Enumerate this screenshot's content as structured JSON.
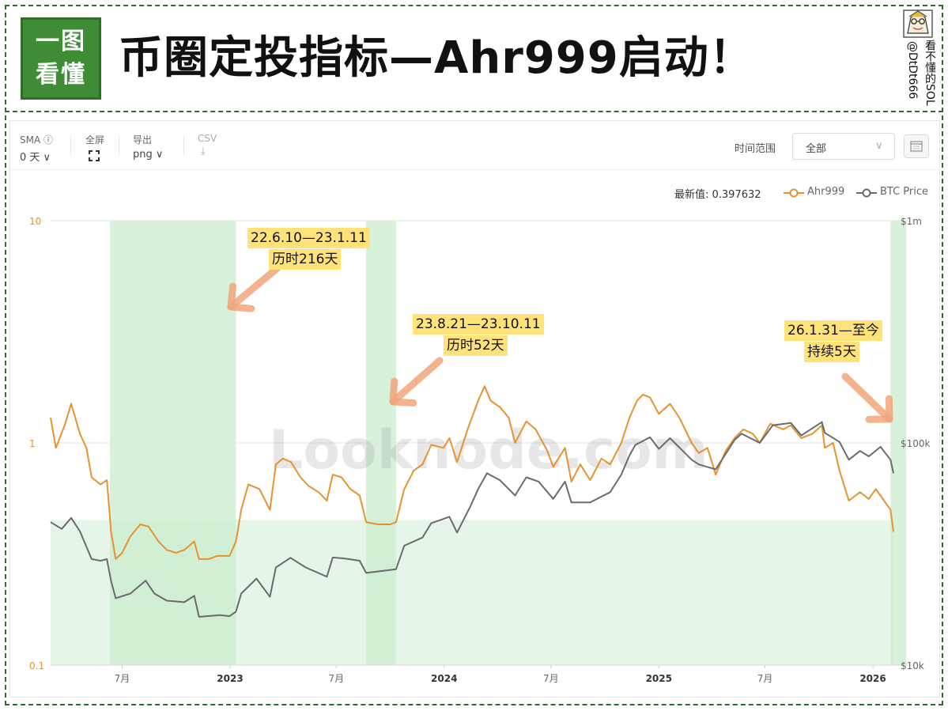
{
  "header": {
    "logo_lines": [
      "一图",
      "看懂"
    ],
    "title": "币圈定投指标—Ahr999启动！",
    "author_cols": [
      "看不懂的SOL",
      "@DtDt666"
    ]
  },
  "toolbar": {
    "sma_label": "SMA ⓘ",
    "sma_value": "0 天 ∨",
    "fullscreen_label": "全屏",
    "export_label": "导出",
    "export_value": "png ∨",
    "csv_label": "CSV",
    "csv_icon": "⤓",
    "range_label": "时间范围",
    "range_value": "全部",
    "range_chevron": "∨"
  },
  "legend": {
    "latest": "最新值: 0.397632",
    "items": [
      "Ahr999",
      "BTC Price"
    ]
  },
  "watermark": "Looknode.com",
  "colors": {
    "ahr999": "#e8922f",
    "btc": "#6b6b6b",
    "band": "#c9eccf",
    "zone": "#e5f6e8",
    "annot": "#ffe27a",
    "arrow": "#f1a67b",
    "frame": "#2f6b2c"
  },
  "annotations": [
    {
      "lines": [
        "22.6.10—23.1.11",
        "历时216天"
      ]
    },
    {
      "lines": [
        "23.8.21—23.10.11",
        "历时52天"
      ]
    },
    {
      "lines": [
        "26.1.31—至今",
        "持续5天"
      ]
    }
  ],
  "chart_data": {
    "type": "line",
    "x_start": "2022-03-01",
    "x_end": "2026-02-05",
    "x_ticks": [
      {
        "date": "2022-07-01",
        "label": "7月",
        "bold": false
      },
      {
        "date": "2023-01-01",
        "label": "2023",
        "bold": true
      },
      {
        "date": "2023-07-01",
        "label": "7月",
        "bold": false
      },
      {
        "date": "2024-01-01",
        "label": "2024",
        "bold": true
      },
      {
        "date": "2024-07-01",
        "label": "7月",
        "bold": false
      },
      {
        "date": "2025-01-01",
        "label": "2025",
        "bold": true
      },
      {
        "date": "2025-07-01",
        "label": "7月",
        "bold": false
      },
      {
        "date": "2026-01-01",
        "label": "2026",
        "bold": true
      }
    ],
    "left_axis": {
      "scale": "log",
      "range": [
        0.1,
        10
      ],
      "ticks": [
        "10",
        "1",
        "0.1"
      ]
    },
    "right_axis": {
      "scale": "log",
      "range": [
        10000,
        1000000
      ],
      "ticks": [
        "$1m",
        "$100k",
        "$10k"
      ]
    },
    "shaded_periods": [
      {
        "start": "2022-06-10",
        "end": "2023-01-11"
      },
      {
        "start": "2023-08-21",
        "end": "2023-10-11"
      },
      {
        "start": "2026-01-31",
        "end": "2026-02-05"
      }
    ],
    "threshold_zone": {
      "from": 0.1,
      "to": 0.45
    },
    "series": [
      {
        "name": "Ahr999",
        "axis": "left",
        "points": [
          [
            "2022-03-01",
            1.3
          ],
          [
            "2022-03-10",
            0.95
          ],
          [
            "2022-03-25",
            1.2
          ],
          [
            "2022-04-05",
            1.5
          ],
          [
            "2022-04-20",
            1.1
          ],
          [
            "2022-05-01",
            0.95
          ],
          [
            "2022-05-10",
            0.7
          ],
          [
            "2022-05-25",
            0.65
          ],
          [
            "2022-06-05",
            0.68
          ],
          [
            "2022-06-12",
            0.4
          ],
          [
            "2022-06-20",
            0.3
          ],
          [
            "2022-07-01",
            0.32
          ],
          [
            "2022-07-15",
            0.38
          ],
          [
            "2022-08-01",
            0.43
          ],
          [
            "2022-08-15",
            0.42
          ],
          [
            "2022-09-01",
            0.36
          ],
          [
            "2022-09-15",
            0.33
          ],
          [
            "2022-10-01",
            0.32
          ],
          [
            "2022-10-15",
            0.33
          ],
          [
            "2022-11-01",
            0.36
          ],
          [
            "2022-11-09",
            0.3
          ],
          [
            "2022-11-25",
            0.3
          ],
          [
            "2022-12-10",
            0.31
          ],
          [
            "2022-12-31",
            0.31
          ],
          [
            "2023-01-11",
            0.36
          ],
          [
            "2023-01-20",
            0.5
          ],
          [
            "2023-02-01",
            0.65
          ],
          [
            "2023-02-20",
            0.62
          ],
          [
            "2023-03-10",
            0.5
          ],
          [
            "2023-03-20",
            0.8
          ],
          [
            "2023-04-01",
            0.85
          ],
          [
            "2023-04-15",
            0.82
          ],
          [
            "2023-05-01",
            0.7
          ],
          [
            "2023-05-15",
            0.64
          ],
          [
            "2023-06-01",
            0.6
          ],
          [
            "2023-06-15",
            0.55
          ],
          [
            "2023-06-25",
            0.72
          ],
          [
            "2023-07-10",
            0.7
          ],
          [
            "2023-07-25",
            0.62
          ],
          [
            "2023-08-10",
            0.58
          ],
          [
            "2023-08-21",
            0.44
          ],
          [
            "2023-09-10",
            0.43
          ],
          [
            "2023-10-01",
            0.43
          ],
          [
            "2023-10-11",
            0.44
          ],
          [
            "2023-10-25",
            0.62
          ],
          [
            "2023-11-10",
            0.75
          ],
          [
            "2023-11-25",
            0.8
          ],
          [
            "2023-12-10",
            0.98
          ],
          [
            "2023-12-31",
            0.95
          ],
          [
            "2024-01-10",
            1.05
          ],
          [
            "2024-01-23",
            0.82
          ],
          [
            "2024-02-10",
            1.15
          ],
          [
            "2024-02-28",
            1.55
          ],
          [
            "2024-03-10",
            1.8
          ],
          [
            "2024-03-20",
            1.55
          ],
          [
            "2024-04-05",
            1.45
          ],
          [
            "2024-04-20",
            1.3
          ],
          [
            "2024-05-01",
            1.0
          ],
          [
            "2024-05-20",
            1.25
          ],
          [
            "2024-06-05",
            1.15
          ],
          [
            "2024-06-25",
            0.92
          ],
          [
            "2024-07-05",
            0.78
          ],
          [
            "2024-07-25",
            0.95
          ],
          [
            "2024-08-05",
            0.67
          ],
          [
            "2024-08-20",
            0.8
          ],
          [
            "2024-09-06",
            0.68
          ],
          [
            "2024-09-25",
            0.85
          ],
          [
            "2024-10-10",
            0.8
          ],
          [
            "2024-10-29",
            1.0
          ],
          [
            "2024-11-12",
            1.3
          ],
          [
            "2024-11-25",
            1.55
          ],
          [
            "2024-12-05",
            1.65
          ],
          [
            "2024-12-17",
            1.6
          ],
          [
            "2025-01-01",
            1.35
          ],
          [
            "2025-01-20",
            1.5
          ],
          [
            "2025-02-05",
            1.3
          ],
          [
            "2025-02-26",
            1.0
          ],
          [
            "2025-03-10",
            0.9
          ],
          [
            "2025-03-25",
            0.95
          ],
          [
            "2025-04-08",
            0.72
          ],
          [
            "2025-04-25",
            0.92
          ],
          [
            "2025-05-10",
            1.05
          ],
          [
            "2025-05-25",
            1.15
          ],
          [
            "2025-06-10",
            1.1
          ],
          [
            "2025-06-22",
            1.0
          ],
          [
            "2025-07-10",
            1.22
          ],
          [
            "2025-08-01",
            1.15
          ],
          [
            "2025-08-14",
            1.2
          ],
          [
            "2025-09-01",
            1.05
          ],
          [
            "2025-09-20",
            1.1
          ],
          [
            "2025-10-06",
            1.2
          ],
          [
            "2025-10-11",
            0.95
          ],
          [
            "2025-10-25",
            1.0
          ],
          [
            "2025-11-05",
            0.75
          ],
          [
            "2025-11-21",
            0.55
          ],
          [
            "2025-12-10",
            0.6
          ],
          [
            "2025-12-25",
            0.56
          ],
          [
            "2026-01-06",
            0.62
          ],
          [
            "2026-01-20",
            0.55
          ],
          [
            "2026-01-31",
            0.5
          ],
          [
            "2026-02-05",
            0.398
          ]
        ]
      },
      {
        "name": "BTC Price",
        "axis": "right",
        "points": [
          [
            "2022-03-01",
            44000
          ],
          [
            "2022-03-20",
            41000
          ],
          [
            "2022-04-05",
            46000
          ],
          [
            "2022-04-20",
            40000
          ],
          [
            "2022-05-10",
            30000
          ],
          [
            "2022-05-25",
            29500
          ],
          [
            "2022-06-05",
            30000
          ],
          [
            "2022-06-12",
            24000
          ],
          [
            "2022-06-20",
            20000
          ],
          [
            "2022-07-15",
            21000
          ],
          [
            "2022-08-10",
            24000
          ],
          [
            "2022-08-25",
            21000
          ],
          [
            "2022-09-15",
            19500
          ],
          [
            "2022-10-15",
            19200
          ],
          [
            "2022-11-01",
            20500
          ],
          [
            "2022-11-09",
            16500
          ],
          [
            "2022-12-15",
            16800
          ],
          [
            "2022-12-31",
            16600
          ],
          [
            "2023-01-11",
            17400
          ],
          [
            "2023-01-20",
            21000
          ],
          [
            "2023-02-15",
            24500
          ],
          [
            "2023-03-10",
            20300
          ],
          [
            "2023-03-20",
            27500
          ],
          [
            "2023-04-14",
            30400
          ],
          [
            "2023-05-10",
            27500
          ],
          [
            "2023-06-15",
            25000
          ],
          [
            "2023-06-25",
            30500
          ],
          [
            "2023-07-15",
            30200
          ],
          [
            "2023-08-10",
            29500
          ],
          [
            "2023-08-21",
            26000
          ],
          [
            "2023-09-15",
            26500
          ],
          [
            "2023-10-11",
            27000
          ],
          [
            "2023-10-25",
            34500
          ],
          [
            "2023-11-25",
            37500
          ],
          [
            "2023-12-10",
            43500
          ],
          [
            "2024-01-10",
            46500
          ],
          [
            "2024-01-23",
            39500
          ],
          [
            "2024-02-15",
            52000
          ],
          [
            "2024-02-28",
            62000
          ],
          [
            "2024-03-14",
            73000
          ],
          [
            "2024-04-05",
            68000
          ],
          [
            "2024-05-01",
            58000
          ],
          [
            "2024-05-20",
            70000
          ],
          [
            "2024-06-10",
            67000
          ],
          [
            "2024-07-05",
            56000
          ],
          [
            "2024-07-25",
            67000
          ],
          [
            "2024-08-05",
            54000
          ],
          [
            "2024-09-06",
            54000
          ],
          [
            "2024-10-10",
            60000
          ],
          [
            "2024-10-29",
            72000
          ],
          [
            "2024-11-12",
            88000
          ],
          [
            "2024-11-22",
            98000
          ],
          [
            "2024-12-17",
            106000
          ],
          [
            "2025-01-01",
            94000
          ],
          [
            "2025-01-20",
            105000
          ],
          [
            "2025-02-26",
            84000
          ],
          [
            "2025-03-10",
            80000
          ],
          [
            "2025-04-08",
            76000
          ],
          [
            "2025-05-10",
            103000
          ],
          [
            "2025-05-22",
            110000
          ],
          [
            "2025-06-22",
            100000
          ],
          [
            "2025-07-14",
            120000
          ],
          [
            "2025-08-14",
            123000
          ],
          [
            "2025-09-01",
            108000
          ],
          [
            "2025-10-06",
            124000
          ],
          [
            "2025-10-11",
            111000
          ],
          [
            "2025-11-05",
            101000
          ],
          [
            "2025-11-21",
            84000
          ],
          [
            "2025-12-10",
            92000
          ],
          [
            "2025-12-25",
            87000
          ],
          [
            "2026-01-14",
            96000
          ],
          [
            "2026-01-31",
            84000
          ],
          [
            "2026-02-05",
            73000
          ]
        ]
      }
    ]
  }
}
